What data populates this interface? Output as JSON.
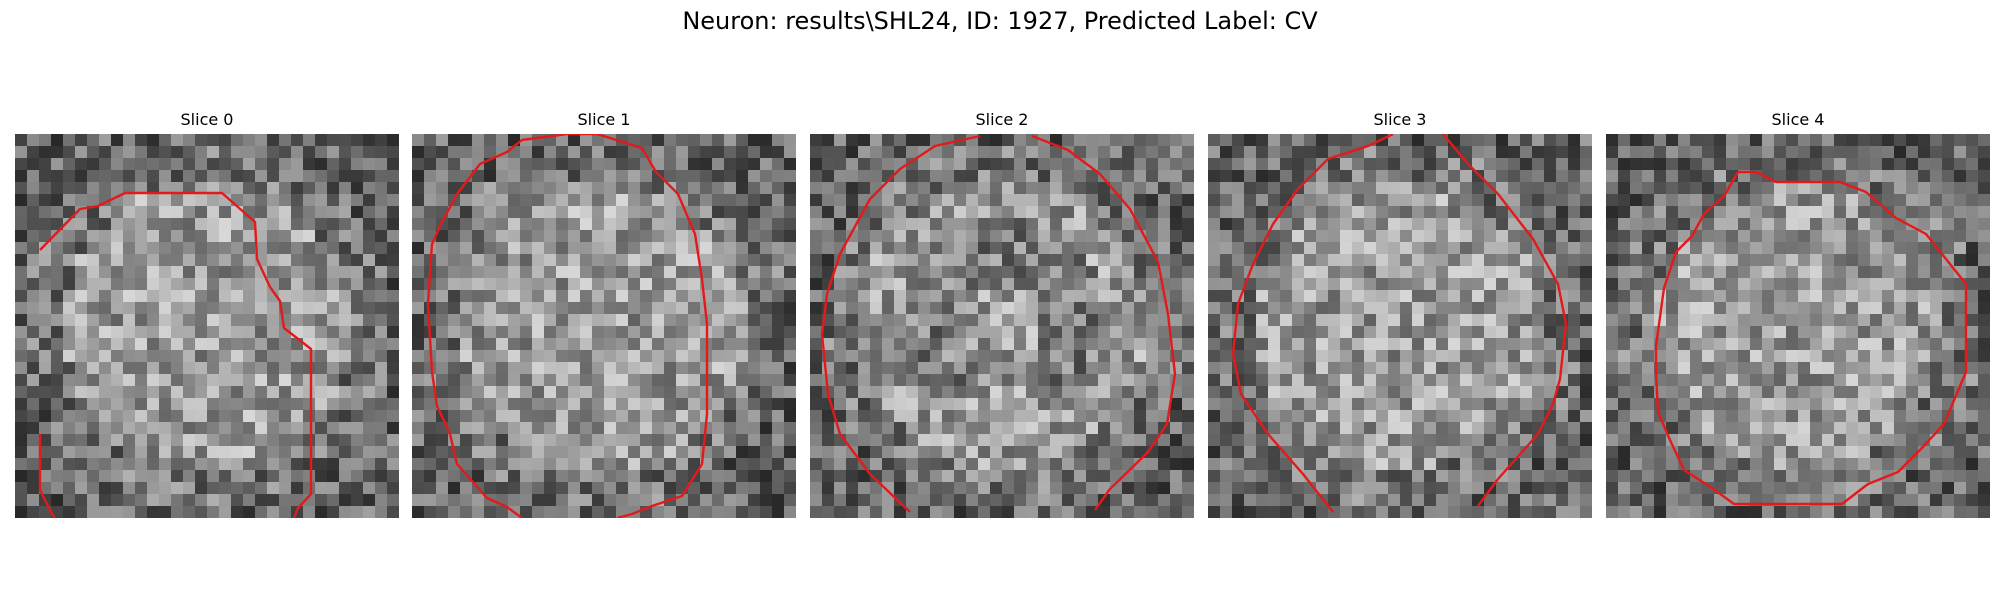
{
  "figure": {
    "title": "Neuron: results\\SHL24, ID: 1927, Predicted Label: CV"
  },
  "contour_color": "#e31a1c",
  "grid_size": 32,
  "slices": [
    {
      "title": "Slice 0"
    },
    {
      "title": "Slice 1"
    },
    {
      "title": "Slice 2"
    },
    {
      "title": "Slice 3"
    },
    {
      "title": "Slice 4"
    }
  ]
}
